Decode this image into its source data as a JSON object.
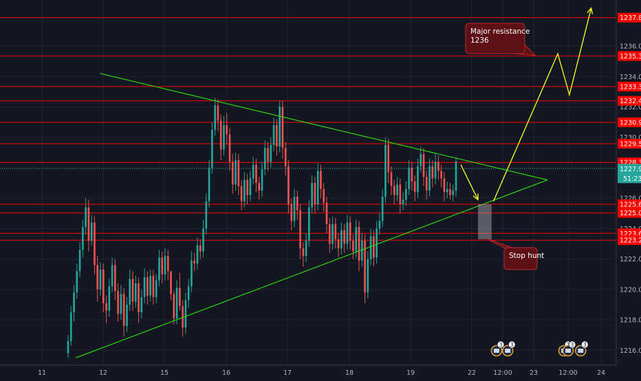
{
  "chart_data": {
    "type": "candlestick",
    "title": "",
    "xlabel": "",
    "ylabel": "",
    "ylim": [
      1215,
      1238.6
    ],
    "grid": true,
    "colors": {
      "background": "#131722",
      "grid": "#1f2433",
      "up": "#26a69a",
      "down": "#ef5350",
      "level": "#ff0000",
      "trendline": "#2ad70e",
      "projection": "#f5f520",
      "current_price": "#26a69a",
      "callout_bg": "#5d1015",
      "callout_border": "#c0282e",
      "text": "#b2b5be"
    },
    "x_axis": {
      "ticks": [
        {
          "label": "11",
          "t": 0
        },
        {
          "label": "12",
          "t": 1
        },
        {
          "label": "15",
          "t": 2
        },
        {
          "label": "16",
          "t": 3
        },
        {
          "label": "17",
          "t": 4
        },
        {
          "label": "18",
          "t": 5
        },
        {
          "label": "19",
          "t": 6
        },
        {
          "label": "22",
          "t": 7
        },
        {
          "label": "12:00",
          "t": 7.5
        },
        {
          "label": "23",
          "t": 8
        },
        {
          "label": "12:00",
          "t": 8.5
        },
        {
          "label": "24",
          "t": 9
        }
      ]
    },
    "y_axis": {
      "ticks": [
        1216,
        1218,
        1220,
        1222,
        1224,
        1226,
        1228,
        1230,
        1232,
        1234,
        1236
      ]
    },
    "levels": [
      1237.87,
      1235.35,
      1233.34,
      1232.4,
      1230.99,
      1229.58,
      1228.35,
      1225.6,
      1225.03,
      1223.69,
      1223.24
    ],
    "current_price": {
      "value": 1227.94,
      "countdown": "51:23"
    },
    "candles_ohlc": [
      [
        1215.8,
        1217.0,
        1215.5,
        1216.6
      ],
      [
        1216.6,
        1218.9,
        1216.3,
        1218.5
      ],
      [
        1218.5,
        1220.3,
        1217.9,
        1219.8
      ],
      [
        1219.8,
        1221.7,
        1219.4,
        1221.2
      ],
      [
        1221.2,
        1223.1,
        1220.8,
        1222.6
      ],
      [
        1222.6,
        1224.6,
        1222.1,
        1224.1
      ],
      [
        1224.1,
        1226.0,
        1223.6,
        1225.4
      ],
      [
        1225.4,
        1225.9,
        1222.5,
        1223.2
      ],
      [
        1223.2,
        1224.9,
        1222.9,
        1224.4
      ],
      [
        1224.4,
        1224.8,
        1221.0,
        1221.6
      ],
      [
        1221.6,
        1222.2,
        1219.2,
        1220.0
      ],
      [
        1220.0,
        1221.8,
        1219.6,
        1221.3
      ],
      [
        1221.3,
        1221.7,
        1218.5,
        1219.1
      ],
      [
        1219.1,
        1219.6,
        1217.8,
        1218.6
      ],
      [
        1218.6,
        1220.7,
        1218.2,
        1220.2
      ],
      [
        1220.2,
        1222.1,
        1219.8,
        1221.6
      ],
      [
        1221.6,
        1222.0,
        1219.3,
        1219.9
      ],
      [
        1219.9,
        1220.4,
        1217.9,
        1218.4
      ],
      [
        1218.4,
        1220.3,
        1218.0,
        1219.7
      ],
      [
        1219.7,
        1220.1,
        1216.9,
        1217.6
      ],
      [
        1217.6,
        1219.5,
        1217.2,
        1219.0
      ],
      [
        1219.0,
        1221.3,
        1218.6,
        1220.7
      ],
      [
        1220.7,
        1221.2,
        1218.6,
        1219.2
      ],
      [
        1219.2,
        1220.9,
        1218.8,
        1220.4
      ],
      [
        1220.4,
        1220.8,
        1217.8,
        1218.5
      ],
      [
        1218.5,
        1220.0,
        1218.1,
        1219.5
      ],
      [
        1219.5,
        1221.4,
        1219.1,
        1220.8
      ],
      [
        1220.8,
        1221.2,
        1219.0,
        1219.6
      ],
      [
        1219.6,
        1221.3,
        1219.2,
        1220.9
      ],
      [
        1220.9,
        1221.3,
        1219.0,
        1219.5
      ],
      [
        1219.5,
        1221.0,
        1219.1,
        1220.6
      ],
      [
        1220.6,
        1222.6,
        1220.2,
        1222.1
      ],
      [
        1222.1,
        1222.5,
        1220.4,
        1221.0
      ],
      [
        1221.0,
        1222.7,
        1220.6,
        1222.2
      ],
      [
        1222.2,
        1222.6,
        1220.6,
        1221.2
      ],
      [
        1221.2,
        1219.8,
        1219.3,
        1219.7
      ],
      [
        1219.7,
        1219.9,
        1217.7,
        1218.1
      ],
      [
        1218.1,
        1220.6,
        1217.7,
        1220.1
      ],
      [
        1220.1,
        1221.1,
        1218.6,
        1218.9
      ],
      [
        1218.9,
        1219.3,
        1216.9,
        1217.5
      ],
      [
        1217.5,
        1219.8,
        1217.1,
        1219.3
      ],
      [
        1219.3,
        1220.7,
        1218.8,
        1220.2
      ],
      [
        1220.2,
        1222.5,
        1219.8,
        1221.9
      ],
      [
        1221.9,
        1222.4,
        1221.2,
        1221.7
      ],
      [
        1221.7,
        1223.4,
        1221.3,
        1222.9
      ],
      [
        1222.9,
        1223.3,
        1222.0,
        1222.5
      ],
      [
        1222.5,
        1224.6,
        1222.1,
        1224.0
      ],
      [
        1224.0,
        1226.3,
        1223.6,
        1225.8
      ],
      [
        1225.8,
        1228.5,
        1225.4,
        1228.0
      ],
      [
        1228.0,
        1231.0,
        1227.6,
        1230.5
      ],
      [
        1230.5,
        1232.6,
        1230.1,
        1232.1
      ],
      [
        1232.1,
        1232.5,
        1230.4,
        1231.1
      ],
      [
        1231.1,
        1231.5,
        1228.5,
        1229.2
      ],
      [
        1229.2,
        1231.4,
        1228.8,
        1230.8
      ],
      [
        1230.8,
        1231.6,
        1229.5,
        1230.2
      ],
      [
        1230.2,
        1230.6,
        1227.8,
        1228.4
      ],
      [
        1228.4,
        1228.9,
        1226.3,
        1226.9
      ],
      [
        1226.9,
        1229.0,
        1226.5,
        1228.5
      ],
      [
        1228.5,
        1228.9,
        1226.2,
        1226.8
      ],
      [
        1226.8,
        1227.2,
        1225.2,
        1225.8
      ],
      [
        1225.8,
        1227.7,
        1225.4,
        1227.2
      ],
      [
        1227.2,
        1227.6,
        1225.6,
        1226.2
      ],
      [
        1226.2,
        1227.8,
        1225.8,
        1227.3
      ],
      [
        1227.3,
        1228.7,
        1226.9,
        1228.2
      ],
      [
        1228.2,
        1228.6,
        1226.4,
        1227.0
      ],
      [
        1227.0,
        1227.4,
        1225.9,
        1226.5
      ],
      [
        1226.5,
        1228.4,
        1226.1,
        1227.9
      ],
      [
        1227.9,
        1229.8,
        1227.5,
        1229.3
      ],
      [
        1229.3,
        1229.7,
        1227.8,
        1228.4
      ],
      [
        1228.4,
        1230.0,
        1228.0,
        1229.5
      ],
      [
        1229.5,
        1231.3,
        1229.1,
        1230.8
      ],
      [
        1230.8,
        1231.2,
        1228.8,
        1229.4
      ],
      [
        1229.4,
        1232.4,
        1229.0,
        1232.0
      ],
      [
        1232.0,
        1232.4,
        1228.6,
        1229.3
      ],
      [
        1229.3,
        1229.7,
        1227.5,
        1228.1
      ],
      [
        1228.1,
        1228.5,
        1225.0,
        1225.6
      ],
      [
        1225.6,
        1226.0,
        1223.9,
        1224.5
      ],
      [
        1224.5,
        1226.6,
        1224.1,
        1226.1
      ],
      [
        1226.1,
        1226.5,
        1224.6,
        1225.2
      ],
      [
        1225.2,
        1225.6,
        1222.0,
        1222.7
      ],
      [
        1222.7,
        1223.1,
        1221.5,
        1222.2
      ],
      [
        1222.2,
        1223.7,
        1221.8,
        1223.2
      ],
      [
        1223.2,
        1225.9,
        1222.8,
        1225.4
      ],
      [
        1225.4,
        1227.5,
        1225.0,
        1227.0
      ],
      [
        1227.0,
        1227.4,
        1225.0,
        1225.6
      ],
      [
        1225.6,
        1228.3,
        1225.2,
        1227.8
      ],
      [
        1227.8,
        1228.2,
        1226.0,
        1226.6
      ],
      [
        1226.6,
        1227.0,
        1225.1,
        1225.7
      ],
      [
        1225.7,
        1226.1,
        1223.7,
        1224.3
      ],
      [
        1224.3,
        1224.7,
        1222.4,
        1223.0
      ],
      [
        1223.0,
        1224.8,
        1222.6,
        1224.3
      ],
      [
        1224.3,
        1224.7,
        1222.7,
        1223.3
      ],
      [
        1223.3,
        1223.7,
        1222.1,
        1222.7
      ],
      [
        1222.7,
        1224.4,
        1222.3,
        1223.9
      ],
      [
        1223.9,
        1224.3,
        1222.4,
        1223.0
      ],
      [
        1223.0,
        1224.9,
        1222.6,
        1224.4
      ],
      [
        1224.4,
        1224.8,
        1222.6,
        1223.2
      ],
      [
        1223.2,
        1223.6,
        1222.0,
        1222.5
      ],
      [
        1222.5,
        1224.6,
        1222.1,
        1224.1
      ],
      [
        1224.1,
        1224.5,
        1221.2,
        1221.9
      ],
      [
        1221.9,
        1223.7,
        1221.5,
        1223.2
      ],
      [
        1223.2,
        1223.6,
        1219.1,
        1219.8
      ],
      [
        1219.8,
        1222.5,
        1219.4,
        1222.0
      ],
      [
        1222.0,
        1224.0,
        1221.6,
        1223.5
      ],
      [
        1223.5,
        1223.9,
        1221.5,
        1222.1
      ],
      [
        1222.1,
        1224.5,
        1221.7,
        1224.0
      ],
      [
        1224.0,
        1225.0,
        1223.6,
        1224.5
      ],
      [
        1224.5,
        1226.6,
        1224.1,
        1226.1
      ],
      [
        1226.1,
        1230.0,
        1225.7,
        1229.5
      ],
      [
        1229.5,
        1229.9,
        1227.0,
        1227.7
      ],
      [
        1227.7,
        1228.1,
        1226.2,
        1226.8
      ],
      [
        1226.8,
        1227.2,
        1225.6,
        1226.2
      ],
      [
        1226.2,
        1227.4,
        1225.8,
        1226.9
      ],
      [
        1226.9,
        1227.3,
        1225.0,
        1225.6
      ],
      [
        1225.6,
        1226.4,
        1225.2,
        1225.9
      ],
      [
        1225.9,
        1227.1,
        1225.5,
        1226.6
      ],
      [
        1226.6,
        1228.5,
        1226.2,
        1228.0
      ],
      [
        1228.0,
        1228.4,
        1226.5,
        1227.1
      ],
      [
        1227.1,
        1227.5,
        1225.8,
        1226.4
      ],
      [
        1226.4,
        1228.6,
        1226.0,
        1228.1
      ],
      [
        1228.1,
        1229.4,
        1227.7,
        1228.9
      ],
      [
        1228.9,
        1229.3,
        1226.8,
        1227.4
      ],
      [
        1227.4,
        1227.8,
        1225.9,
        1226.5
      ],
      [
        1226.5,
        1228.6,
        1226.1,
        1228.1
      ],
      [
        1228.1,
        1228.5,
        1226.7,
        1227.3
      ],
      [
        1227.3,
        1228.9,
        1226.9,
        1228.4
      ],
      [
        1228.4,
        1228.8,
        1227.2,
        1227.8
      ],
      [
        1227.8,
        1228.2,
        1226.7,
        1227.3
      ],
      [
        1227.3,
        1227.7,
        1225.8,
        1226.4
      ],
      [
        1226.4,
        1227.1,
        1226.0,
        1226.6
      ],
      [
        1226.6,
        1227.0,
        1225.9,
        1226.2
      ],
      [
        1226.2,
        1226.9,
        1225.8,
        1226.5
      ],
      [
        1226.5,
        1228.7,
        1226.1,
        1228.4
      ]
    ],
    "trendlines": [
      {
        "name": "upper",
        "from": {
          "t": 0.95,
          "p": 1234.2
        },
        "to": {
          "t": 8.2,
          "p": 1227.2
        }
      },
      {
        "name": "lower",
        "from": {
          "t": 0.55,
          "p": 1215.5
        },
        "to": {
          "t": 8.2,
          "p": 1227.2
        }
      }
    ],
    "projection_path": [
      {
        "t": 6.82,
        "p": 1228.2
      },
      {
        "t": 7.1,
        "p": 1225.9
      },
      {
        "t": 7.35,
        "p": 1225.8
      },
      {
        "t": 8.35,
        "p": 1235.5
      },
      {
        "t": 8.52,
        "p": 1232.8
      },
      {
        "t": 8.85,
        "p": 1238.5
      }
    ],
    "stop_hunt_zone": {
      "t1": 7.1,
      "t2": 7.32,
      "p_top": 1225.6,
      "p_bottom": 1223.3
    },
    "annotations": [
      {
        "name": "major-resistance",
        "text": "Major resistance\n1236"
      },
      {
        "name": "stop-hunt",
        "text": "Stop hunt"
      }
    ],
    "event_badges": [
      {
        "t": 7.4,
        "label": "3"
      },
      {
        "t": 7.58,
        "label": "3"
      },
      {
        "t": 8.44,
        "label": "2"
      },
      {
        "t": 8.5,
        "label": "3"
      },
      {
        "t": 8.69,
        "label": "3"
      }
    ]
  }
}
